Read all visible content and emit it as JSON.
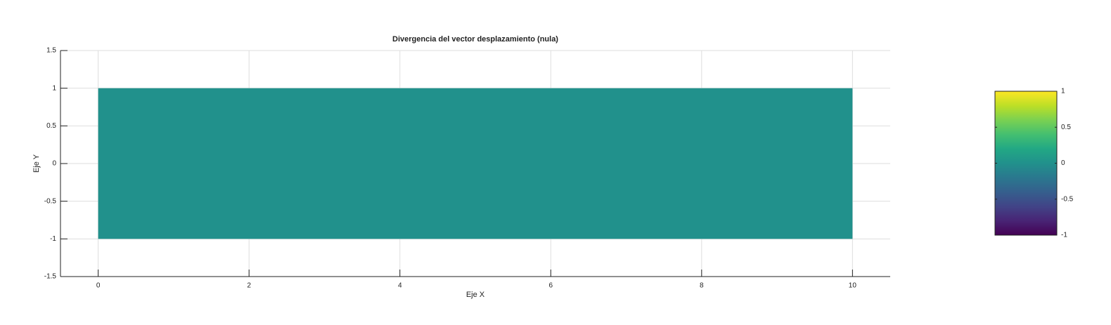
{
  "chart_data": {
    "type": "surface",
    "title": "Divergencia del vector desplazamiento (nula)",
    "x_label": "Eje X",
    "y_label": "Eje Y",
    "x": [
      0,
      10
    ],
    "y": [
      -1,
      1
    ],
    "z": [
      [
        0,
        0
      ],
      [
        0,
        0
      ]
    ],
    "colormap": "viridis",
    "xlim": [
      -0.5,
      10.5
    ],
    "xticks": [
      0,
      2,
      4,
      6,
      8,
      10
    ],
    "ylim": [
      -1.5,
      1.5
    ],
    "yticks": [
      -1.5,
      -1,
      -0.5,
      0,
      0.5,
      1,
      1.5
    ],
    "grid": true,
    "colorbar": {
      "clim": [
        -1,
        1
      ],
      "ticks": [
        -1,
        -0.5,
        0,
        0.5,
        1
      ]
    }
  }
}
